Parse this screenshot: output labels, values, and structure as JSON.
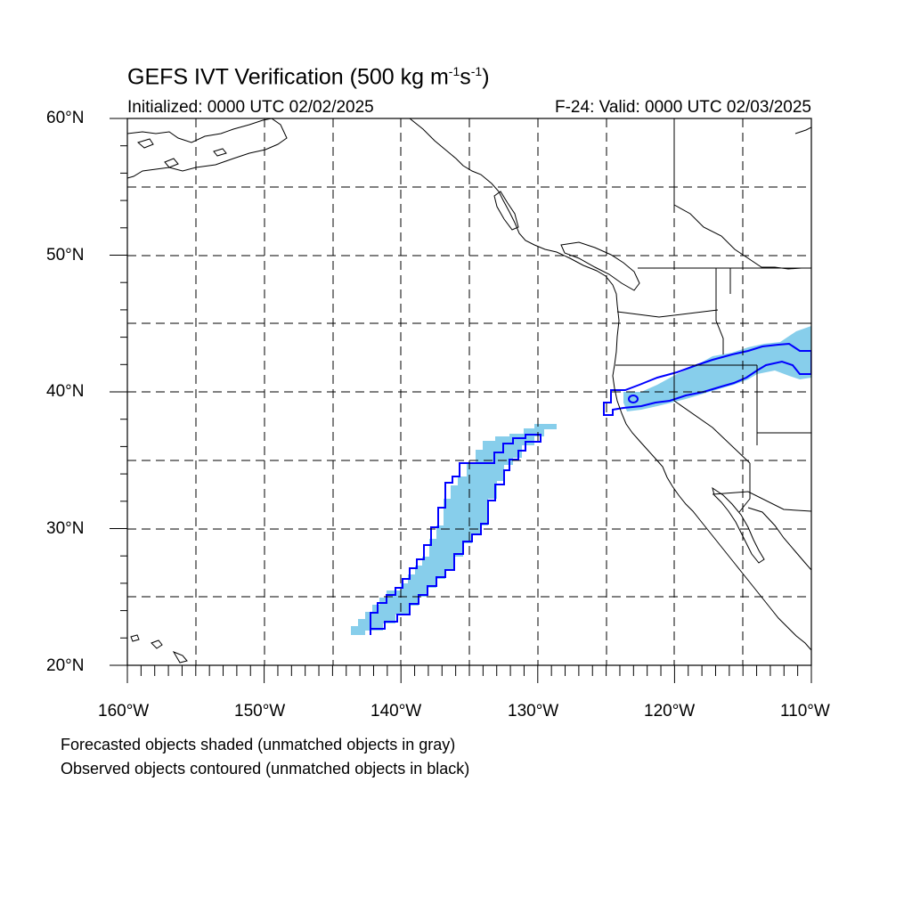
{
  "header": {
    "title_main": "GEFS IVT Verification (500 kg m",
    "title_exp1": "-1",
    "title_mid": "s",
    "title_exp2": "-1",
    "title_end": ")",
    "initialized": "Initialized: 0000 UTC 02/02/2025",
    "valid": "F-24: Valid: 0000 UTC 02/03/2025"
  },
  "axes": {
    "lat_labels": [
      "60°N",
      "50°N",
      "40°N",
      "30°N",
      "20°N"
    ],
    "lon_labels": [
      "160°W",
      "150°W",
      "140°W",
      "130°W",
      "120°W",
      "110°W"
    ]
  },
  "footer": {
    "line1": "Forecasted objects shaded (unmatched objects in gray)",
    "line2": "Observed objects contoured (unmatched objects in black)"
  },
  "colors": {
    "forecast_fill": "#87ceeb",
    "observed_contour": "#0000ff",
    "coast": "#000000",
    "grid": "#000000"
  }
}
